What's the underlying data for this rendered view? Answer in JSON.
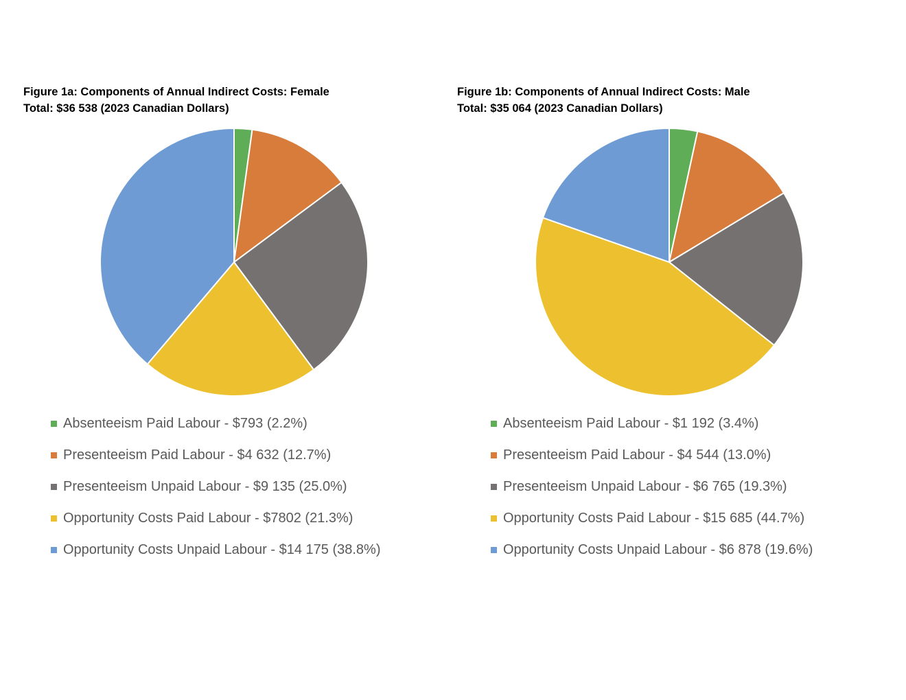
{
  "chart_data": [
    {
      "type": "pie",
      "title": "Figure 1a:  Components of Annual Indirect Costs: Female",
      "subtitle": "Total: $36 538 (2023 Canadian Dollars)",
      "categories": [
        "Absenteeism Paid Labour - $793 (2.2%)",
        "Presenteeism Paid Labour - $4 632 (12.7%)",
        "Presenteeism Unpaid Labour - $9 135 (25.0%)",
        "Opportunity Costs Paid Labour - $7802 (21.3%)",
        "Opportunity Costs Unpaid Labour - $14 175 (38.8%)"
      ],
      "values": [
        793,
        4632,
        9135,
        7802,
        14175
      ],
      "colors": [
        "#5fae57",
        "#d77c3a",
        "#767171",
        "#ecc02e",
        "#6e9bd3"
      ],
      "legend_position": "bottom"
    },
    {
      "type": "pie",
      "title": "Figure 1b: Components of Annual Indirect Costs: Male",
      "subtitle": "Total: $35 064 (2023 Canadian Dollars)",
      "categories": [
        "Absenteeism Paid Labour - $1 192 (3.4%)",
        "Presenteeism Paid Labour - $4 544 (13.0%)",
        "Presenteeism Unpaid Labour - $6 765 (19.3%)",
        "Opportunity Costs Paid Labour - $15 685 (44.7%)",
        "Opportunity Costs Unpaid Labour - $6 878 (19.6%)"
      ],
      "values": [
        1192,
        4544,
        6765,
        15685,
        6878
      ],
      "colors": [
        "#5fae57",
        "#d77c3a",
        "#767171",
        "#ecc02e",
        "#6e9bd3"
      ],
      "legend_position": "bottom"
    }
  ]
}
